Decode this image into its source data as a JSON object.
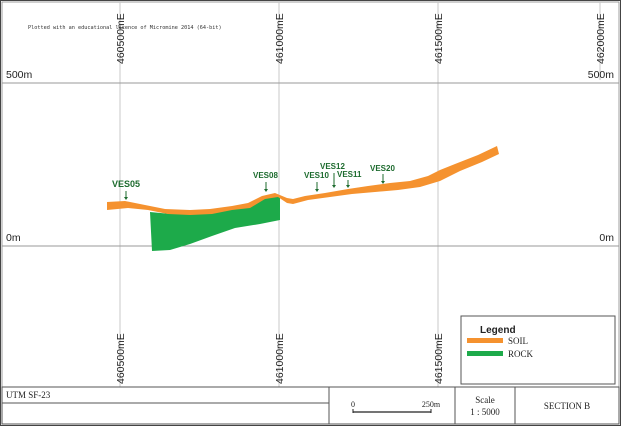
{
  "plot_note": "Plotted with an educational licence of Micromine 2014 (64-bit)",
  "easting_labels_top": [
    "460500mE",
    "461000mE",
    "461500mE",
    "462000mE"
  ],
  "easting_labels_bottom": [
    "460500mE",
    "461000mE",
    "461500mE"
  ],
  "elevation_labels": {
    "upper_left": "500m",
    "upper_right": "500m",
    "lower_left": "0m",
    "lower_right": "0m"
  },
  "stations": [
    "VES05",
    "VES08",
    "VES10",
    "VES12",
    "VES11",
    "VES20"
  ],
  "legend": {
    "title": "Legend",
    "items": [
      {
        "label": "SOIL",
        "color": "#F5922F"
      },
      {
        "label": "ROCK",
        "color": "#1DAA4A"
      }
    ]
  },
  "title_block": {
    "grid": "UTM SF-23",
    "scale_bar_start": "0",
    "scale_bar_end": "250m",
    "scale_label": "Scale",
    "scale_value": "1 : 5000",
    "section": "SECTION B"
  },
  "colors": {
    "soil": "#F5922F",
    "rock": "#1DAA4A",
    "grid": "#c8c8c8",
    "axis": "#555555",
    "station_label": "#1d6b2e"
  }
}
